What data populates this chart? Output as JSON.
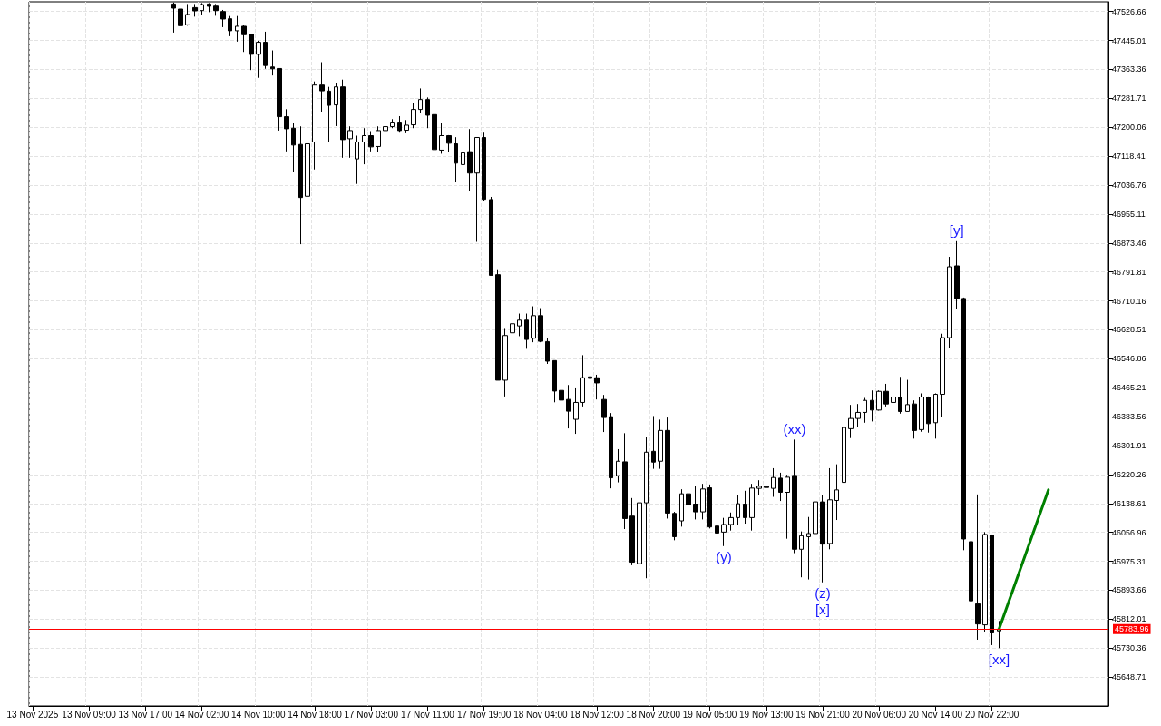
{
  "chart_data": {
    "type": "candlestick",
    "categories": [
      "13 Nov 2025",
      null,
      null,
      null,
      null,
      null,
      null,
      null,
      "13 Nov 09:00",
      null,
      null,
      null,
      null,
      null,
      null,
      null,
      "13 Nov 17:00",
      null,
      null,
      null,
      null,
      null,
      null,
      null,
      "14 Nov 02:00",
      null,
      null,
      null,
      null,
      null,
      null,
      null,
      "14 Nov 10:00",
      null,
      null,
      null,
      null,
      null,
      null,
      null,
      "14 Nov 18:00",
      null,
      null,
      null,
      null,
      null,
      null,
      null,
      "17 Nov 03:00",
      null,
      null,
      null,
      null,
      null,
      null,
      null,
      "17 Nov 11:00",
      null,
      null,
      null,
      null,
      null,
      null,
      null,
      "17 Nov 19:00",
      null,
      null,
      null,
      null,
      null,
      null,
      null,
      "18 Nov 04:00",
      null,
      null,
      null,
      null,
      null,
      null,
      null,
      "18 Nov 12:00",
      null,
      null,
      null,
      null,
      null,
      null,
      null,
      "18 Nov 20:00",
      null,
      null,
      null,
      null,
      null,
      null,
      null,
      "19 Nov 05:00",
      null,
      null,
      null,
      null,
      null,
      null,
      null,
      "19 Nov 13:00",
      null,
      null,
      null,
      null,
      null,
      null,
      null,
      "19 Nov 21:00",
      null,
      null,
      null,
      null,
      null,
      null,
      null,
      "20 Nov 06:00",
      null,
      null,
      null,
      null,
      null,
      null,
      null,
      "20 Nov 14:00",
      null,
      null,
      null,
      null,
      null,
      null,
      null,
      "20 Nov 22:00",
      null,
      null,
      null,
      null,
      null,
      null,
      null,
      null,
      null,
      null,
      null,
      null,
      null,
      null,
      null,
      null
    ],
    "series": [
      {
        "color": "#000000",
        "ohlc": [
          null,
          null,
          null,
          null,
          null,
          null,
          null,
          null,
          null,
          null,
          null,
          null,
          null,
          null,
          null,
          null,
          null,
          null,
          null,
          null,
          [
            47547.8,
            47552,
            47467.2,
            47536.1
          ],
          [
            47533.5,
            47547.8,
            47433,
            47486.6
          ],
          [
            47489.1,
            47547.8,
            47486.6,
            47518.2
          ],
          [
            47537.6,
            47547.8,
            47512.1,
            47528.4
          ],
          [
            47529.2,
            47550.4,
            47518.2,
            47546.3
          ],
          [
            47547.8,
            47550.4,
            47524.9,
            47541.2
          ],
          [
            47541.9,
            47547.8,
            47514.6,
            47529.2
          ],
          [
            47526.6,
            47531,
            47482.5,
            47505.5
          ],
          [
            47506.2,
            47513.9,
            47457,
            47472.3
          ],
          [
            47472.3,
            47513.9,
            47441.7,
            47485
          ],
          [
            47485,
            47488.4,
            47412.6,
            47461.1
          ],
          [
            47462.8,
            47462.8,
            47361.5,
            47405.9
          ],
          [
            47405.9,
            47444.2,
            47339.6,
            47439.9
          ],
          [
            47439.9,
            47469.7,
            47365.1,
            47374.3
          ],
          [
            47370.2,
            47416.9,
            47346.2,
            47365.1
          ],
          [
            47365.9,
            47365.9,
            47190.6,
            47229.9
          ],
          [
            47229.9,
            47251,
            47131.9,
            47195.7
          ],
          [
            47197.5,
            47212,
            47073.2,
            47149.8
          ],
          [
            47151.5,
            47202.6,
            46870.1,
            47001.8
          ],
          [
            47005.3,
            47182.2,
            46865,
            47153.3
          ],
          [
            47158.4,
            47329.4,
            47080.9,
            47319.2
          ],
          [
            47319.2,
            47383.7,
            47244.2,
            47302.9
          ],
          [
            47302.1,
            47314.1,
            47157.4,
            47262
          ],
          [
            47263.1,
            47325,
            47203.3,
            47314.1
          ],
          [
            47314.1,
            47334.5,
            47114,
            47165.1
          ],
          [
            47167.6,
            47202.6,
            47114,
            47190.6
          ],
          [
            47110.7,
            47176.3,
            47040.1,
            47158.4
          ],
          [
            47158.4,
            47197.5,
            47095.4,
            47176.3
          ],
          [
            47176.3,
            47189.1,
            47131.9,
            47144.7
          ],
          [
            47145.7,
            47202.6,
            47129.4,
            47190.6
          ],
          [
            47190.6,
            47212,
            47183,
            47201.8
          ],
          [
            47201.8,
            47223,
            47197.5,
            47214.6
          ],
          [
            47214.6,
            47231.4,
            47184.7,
            47190.6
          ],
          [
            47191.6,
            47220.4,
            47183,
            47205.9
          ],
          [
            47206.9,
            47268.2,
            47197.5,
            47250.3
          ],
          [
            47250.3,
            47309.7,
            47241.6,
            47278.4
          ],
          [
            47278.4,
            47284.2,
            47197.5,
            47234
          ],
          [
            47235.7,
            47238.3,
            47129.4,
            47137
          ],
          [
            47135.5,
            47212.8,
            47125.3,
            47176.3
          ],
          [
            47176.3,
            47177.8,
            47129.4,
            47154.9
          ],
          [
            47153.3,
            47172,
            47044.4,
            47098.7
          ],
          [
            47094.6,
            47230.6,
            47018.9,
            47127.8
          ],
          [
            47131.1,
            47194.9,
            47021.4,
            47070.7
          ],
          [
            47070.7,
            47171.2,
            46876.7,
            47171.2
          ],
          [
            47171.2,
            47184.7,
            46991.6,
            46996.7
          ],
          [
            46995.9,
            47003.5,
            46782.3,
            46782.3
          ],
          [
            46784.1,
            46799.4,
            46486.4,
            46486.4
          ],
          [
            46486.4,
            46633.6,
            46440.4,
            46612.4
          ],
          [
            46620.1,
            46670.1,
            46608.8,
            46645.6
          ],
          [
            46639.5,
            46674.4,
            46610.6,
            46655.8
          ],
          [
            46655.8,
            46674.4,
            46574.9,
            46601.2
          ],
          [
            46604.8,
            46694.8,
            46593.5,
            46668.5
          ],
          [
            46668.5,
            46689.7,
            46593.5,
            46596.1
          ],
          [
            46595.3,
            46604.8,
            46532.3,
            46540
          ],
          [
            46541.7,
            46541.7,
            46424,
            46455.7
          ],
          [
            46457.5,
            46480.5,
            46414.9,
            46430.2
          ],
          [
            46432,
            46472.8,
            46350.3,
            46398.9
          ],
          [
            46376,
            46465.9,
            46335,
            46423.6
          ],
          [
            46423.6,
            46556.9,
            46412.3,
            46493.3
          ],
          [
            46495.8,
            46511.1,
            46437.9,
            46491.5
          ],
          [
            46493.3,
            46501.7,
            46432,
            46478.7
          ],
          [
            46432,
            46444.8,
            46340.1,
            46381
          ],
          [
            46383.5,
            46393.7,
            46181.2,
            46210.8
          ],
          [
            46216.9,
            46291.7,
            46198,
            46257.7
          ],
          [
            46256,
            46336.8,
            46066.3,
            46095.9
          ],
          [
            46102.8,
            46153.8,
            45964.2,
            45972.7
          ],
          [
            45968.4,
            46246.5,
            45924.2,
            46140.3
          ],
          [
            46140.3,
            46325.6,
            45927.5,
            46283.2
          ],
          [
            46285.7,
            46385.3,
            46236.3,
            46255.2
          ],
          [
            46257.7,
            46375.1,
            46236.3,
            46344.5
          ],
          [
            46344.5,
            46381,
            46095.9,
            46111.3
          ],
          [
            46110.5,
            46114.8,
            46034.7,
            46044.7
          ],
          [
            46089.3,
            46178.6,
            46073,
            46165.8
          ],
          [
            46165.8,
            46176.8,
            46057.7,
            46134.2
          ],
          [
            46136.7,
            46187,
            46093.4,
            46114.8
          ],
          [
            46114.8,
            46193.9,
            46093.4,
            46179.4
          ],
          [
            46182.7,
            46192.1,
            46067.9,
            46072.2
          ],
          [
            46074.8,
            46090.1,
            46033.9,
            46055.1
          ],
          [
            46057.7,
            46097.8,
            46018.2,
            46079.1
          ],
          [
            46079.1,
            46113,
            46062,
            46098.6
          ],
          [
            46098.6,
            46161.5,
            46077.3,
            46137.8
          ],
          [
            46136.7,
            46174.3,
            46081.6,
            46098.6
          ],
          [
            46098.6,
            46193.9,
            46062,
            46181.9
          ],
          [
            46181.2,
            46204.1,
            46162.3,
            46187
          ],
          [
            46186.3,
            46221,
            46176.8,
            46183.7
          ],
          [
            46181.2,
            46238,
            46157.2,
            46211.8
          ],
          [
            46210,
            46225.3,
            46145.5,
            46170
          ],
          [
            46170,
            46219.4,
            46039,
            46212.6
          ],
          [
            46217.7,
            46318.9,
            45998.3,
            46009.2
          ],
          [
            46009.2,
            46059.5,
            45930.1,
            46047.5
          ],
          [
            46044.7,
            46100.3,
            45924,
            46053.6
          ],
          [
            46053.6,
            46185.3,
            46039,
            46142.9
          ],
          [
            46142.9,
            46162.3,
            45915.8,
            46023.7
          ],
          [
            46025.5,
            46238,
            46009.2,
            46148.8
          ],
          [
            46147,
            46249,
            46091.8,
            46176.8
          ],
          [
            46198,
            46357.2,
            46187.8,
            46352.9
          ],
          [
            46349.6,
            46416.7,
            46323.1,
            46378.4
          ],
          [
            46378.4,
            46419.2,
            46355.4,
            46395.5
          ],
          [
            46395.5,
            46436.3,
            46366.4,
            46429.4
          ],
          [
            46429.4,
            46457.5,
            46370,
            46402.1
          ],
          [
            46402.1,
            46457.5,
            46400.6,
            46454.9
          ],
          [
            46454.9,
            46476.1,
            46412.3,
            46419.2
          ],
          [
            46423.6,
            46442.2,
            46395.5,
            46438.9
          ],
          [
            46438.9,
            46495.8,
            46392,
            46398.1
          ],
          [
            46398.1,
            46487.4,
            46398.1,
            46417.5
          ],
          [
            46419.2,
            46429.4,
            46321.5,
            46344.5
          ],
          [
            46347,
            46449.1,
            46340.9,
            46438.9
          ],
          [
            46438.9,
            46440.4,
            46338.4,
            46363.8
          ],
          [
            46366.4,
            46449.1,
            46321.5,
            46446.5
          ],
          [
            46446.5,
            46617.5,
            46383.5,
            46606.3
          ],
          [
            46606.3,
            46834.4,
            46576.7,
            46806.3
          ],
          [
            46808.9,
            46878.5,
            46687.1,
            46717
          ],
          [
            46717,
            46719.5,
            46006.6,
            46038.2
          ],
          [
            46030.6,
            46153.1,
            45743,
            45863.7
          ],
          [
            45855.3,
            46164,
            45754,
            45798.4
          ],
          [
            45795.9,
            46057.7,
            45777,
            46051
          ],
          [
            46049.3,
            46051,
            45738.7,
            45775.5
          ],
          [
            45778.8,
            45806.9,
            45730.2,
            45783.96
          ],
          null,
          null,
          null,
          null,
          null,
          null,
          null,
          null,
          null,
          null,
          null,
          null,
          null,
          null,
          null
        ]
      },
      {
        "type": "line",
        "color": "#008000",
        "values": [
          null,
          null,
          null,
          null,
          null,
          null,
          null,
          null,
          null,
          null,
          null,
          null,
          null,
          null,
          null,
          null,
          null,
          null,
          null,
          null,
          null,
          null,
          null,
          null,
          null,
          null,
          null,
          null,
          null,
          null,
          null,
          null,
          null,
          null,
          null,
          null,
          null,
          null,
          null,
          null,
          null,
          null,
          null,
          null,
          null,
          null,
          null,
          null,
          null,
          null,
          null,
          null,
          null,
          null,
          null,
          null,
          null,
          null,
          null,
          null,
          null,
          null,
          null,
          null,
          null,
          null,
          null,
          null,
          null,
          null,
          null,
          null,
          null,
          null,
          null,
          null,
          null,
          null,
          null,
          null,
          null,
          null,
          null,
          null,
          null,
          null,
          null,
          null,
          null,
          null,
          null,
          null,
          null,
          null,
          null,
          null,
          null,
          null,
          null,
          null,
          null,
          null,
          null,
          null,
          null,
          null,
          null,
          null,
          null,
          null,
          null,
          null,
          null,
          null,
          null,
          null,
          null,
          null,
          null,
          null,
          null,
          null,
          null,
          null,
          null,
          null,
          null,
          null,
          null,
          null,
          null,
          null,
          null,
          null,
          null,
          null,
          null,
          45783.96,
          null,
          null,
          null,
          null,
          null,
          null,
          46176.8,
          null,
          null,
          null,
          null,
          null,
          null,
          null,
          null
        ]
      }
    ],
    "ylim": [
      45567,
      47554
    ],
    "yticks": [
      45648.71,
      45730.36,
      45812.01,
      45893.66,
      45975.31,
      46056.96,
      46138.61,
      46220.26,
      46301.91,
      46383.56,
      46465.21,
      46546.86,
      46628.51,
      46710.16,
      46791.81,
      46873.46,
      46955.11,
      47036.76,
      47118.41,
      47200.06,
      47281.71,
      47363.36,
      47445.01,
      47526.66
    ],
    "grid": true,
    "ref_lines": [
      {
        "axis": "y",
        "value": 45783.96,
        "label": "45783.96",
        "color": "#ff0000"
      }
    ],
    "annotations": [
      {
        "text": "(xx)",
        "y": 46318.9
      },
      {
        "text": "(y)",
        "y": 46018.2
      },
      {
        "text": "(z)",
        "y": 45915.8
      },
      {
        "text": "[x]",
        "y": 45915.8
      },
      {
        "text": "[y]",
        "y": 46878.5
      },
      {
        "text": "[xx]",
        "y": 45730.2
      }
    ]
  }
}
